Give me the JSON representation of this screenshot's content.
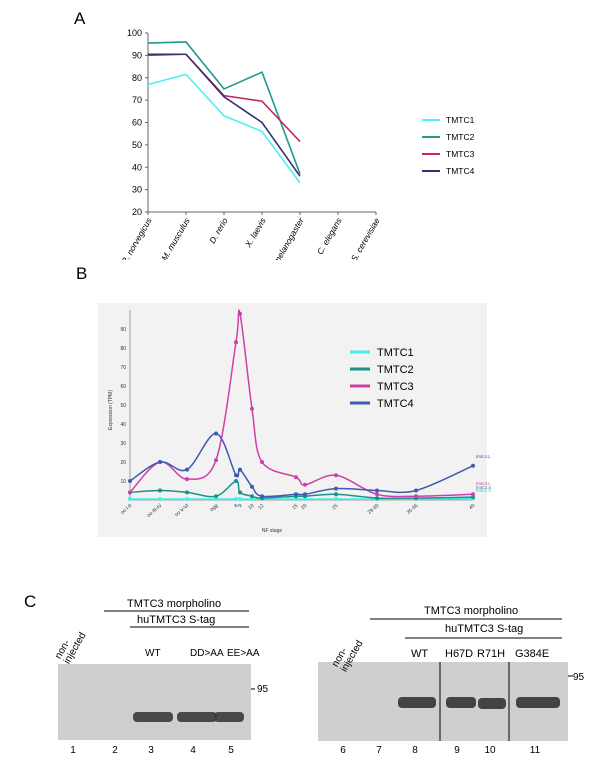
{
  "panels": {
    "a_label": "A",
    "b_label": "B",
    "c_label": "C"
  },
  "chart_data": [
    {
      "type": "line",
      "title": "",
      "categories": [
        "R. norvegicus",
        "M. musculus",
        "D. rerio",
        "X. laevis",
        "D. melanogaster",
        "C. elegans",
        "S. cerevisiae"
      ],
      "ylim": [
        20,
        100
      ],
      "yticks": [
        20,
        30,
        40,
        50,
        60,
        70,
        80,
        90,
        100
      ],
      "grid": false,
      "legend_position": "right",
      "series": [
        {
          "name": "TMTC1",
          "color": "#4ff0f0",
          "values": [
            77,
            81.5,
            63,
            56,
            33,
            null,
            null
          ]
        },
        {
          "name": "TMTC2",
          "color": "#1e9a8e",
          "values": [
            95.5,
            96,
            75,
            82.5,
            37,
            null,
            null
          ]
        },
        {
          "name": "TMTC3",
          "color": "#c42a5e",
          "values": [
            90,
            90.5,
            72,
            69.5,
            51.5,
            null,
            null
          ]
        },
        {
          "name": "TMTC4",
          "color": "#3a2f6e",
          "values": [
            90.5,
            90.5,
            71.5,
            60,
            36,
            null,
            null
          ]
        }
      ]
    },
    {
      "type": "line",
      "title": "",
      "xlabel": "NF stage",
      "ylabel": "Expression (TPM)",
      "ylim": [
        0,
        100
      ],
      "yticks": [
        10,
        20,
        30,
        40,
        50,
        60,
        70,
        80,
        90
      ],
      "x_tick_labels": [
        "oo I-II",
        "oo III-IV",
        "oo V-VI",
        "egg",
        "8",
        "9",
        "10",
        "12",
        "15",
        "20",
        "25",
        "29-30",
        "35-36",
        "40"
      ],
      "legend_position": "right",
      "end_labels": [
        "tmtc4.L",
        "tmtc3.L",
        "tmtc2.S",
        "tmtc1.S"
      ],
      "series": [
        {
          "name": "TMTC1",
          "color": "#43f0ee",
          "values": [
            0.5,
            0.5,
            0.5,
            0.5,
            0.5,
            0.5,
            0.5,
            0.5,
            0.5,
            0.5,
            0.5,
            0.5,
            0.5,
            0.8
          ]
        },
        {
          "name": "TMTC2",
          "color": "#1f8f8a",
          "values": [
            4,
            5,
            4,
            2,
            10,
            4,
            2,
            1,
            2,
            2,
            3,
            1,
            1,
            1.5
          ]
        },
        {
          "name": "TMTC3",
          "color": "#cf3fa8",
          "values": [
            4,
            20,
            11,
            21,
            83,
            98,
            48,
            20,
            12,
            8,
            13,
            3,
            2,
            3
          ]
        },
        {
          "name": "TMTC4",
          "color": "#3f5aae",
          "values": [
            10,
            20,
            16,
            35,
            13,
            16,
            7,
            2,
            3,
            3,
            6,
            5,
            5,
            18
          ]
        }
      ]
    }
  ],
  "blot": {
    "left": {
      "header": "TMTC3 morpholino",
      "subheader": "huTMTC3 S-tag",
      "noninjected": "non-\ninjected",
      "lane_labels": [
        "WT",
        "DD>AA",
        "EE>AA"
      ],
      "lane_numbers": [
        "1",
        "2",
        "3",
        "4",
        "5"
      ],
      "marker": "95"
    },
    "right": {
      "header": "TMTC3 morpholino",
      "subheader": "huTMTC3 S-tag",
      "noninjected": "non-\ninjected",
      "lane_labels": [
        "WT",
        "H67D",
        "R71H",
        "G384E"
      ],
      "lane_numbers": [
        "6",
        "7",
        "8",
        "9",
        "10",
        "11"
      ],
      "marker": "95"
    }
  }
}
